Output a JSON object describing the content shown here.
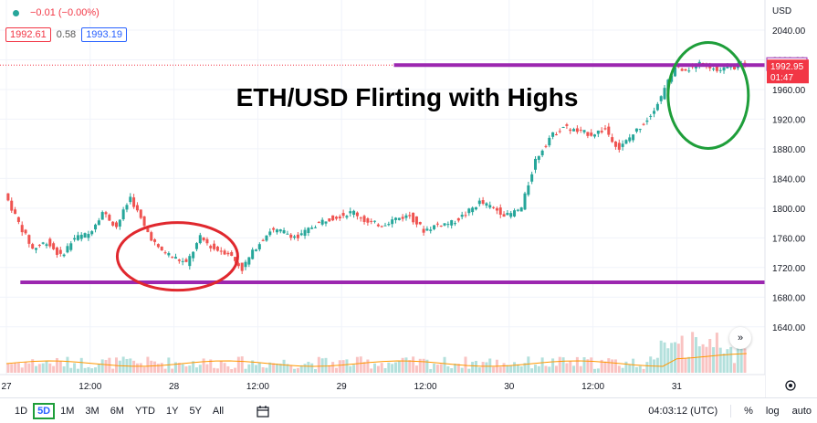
{
  "legend": {
    "change": "−0.01 (−0.00%)",
    "bid": "1992.61",
    "spread": "0.58",
    "ask": "1993.19"
  },
  "annotation_title": "ETH/USD Flirting with Highs",
  "price_scale": {
    "currency": "USD",
    "resistance_label": "1992.96",
    "last_price_label": "1992.95",
    "countdown": "01:47"
  },
  "colors": {
    "up": "#26a69a",
    "down": "#ef5350",
    "support_resistance": "#9c27b0",
    "circle_red": "#e0282e",
    "circle_green": "#1e9e3a",
    "last_price_tag": "#f23645"
  },
  "chart_data": {
    "type": "candlestick",
    "title": "ETH/USD Flirting with Highs",
    "y_ticks": [
      1640,
      1680,
      1720,
      1760,
      1800,
      1840,
      1880,
      1920,
      1960,
      2000,
      2040
    ],
    "x_ticks": [
      "27",
      "12:00",
      "28",
      "12:00",
      "29",
      "12:00",
      "30",
      "12:00",
      "31"
    ],
    "ylim": [
      1620,
      2060
    ],
    "x_range_hours": [
      0,
      106
    ],
    "resistance": 1992.96,
    "support": 1700,
    "last_price": 1992.95,
    "price_path": [
      [
        0,
        1820
      ],
      [
        2,
        1780
      ],
      [
        4,
        1745
      ],
      [
        6,
        1755
      ],
      [
        8,
        1735
      ],
      [
        10,
        1760
      ],
      [
        12,
        1765
      ],
      [
        14,
        1795
      ],
      [
        16,
        1775
      ],
      [
        18,
        1815
      ],
      [
        20,
        1775
      ],
      [
        22,
        1745
      ],
      [
        24,
        1735
      ],
      [
        26,
        1725
      ],
      [
        28,
        1760
      ],
      [
        30,
        1745
      ],
      [
        32,
        1740
      ],
      [
        34,
        1718
      ],
      [
        36,
        1748
      ],
      [
        38,
        1770
      ],
      [
        40,
        1768
      ],
      [
        42,
        1760
      ],
      [
        44,
        1775
      ],
      [
        46,
        1785
      ],
      [
        48,
        1790
      ],
      [
        50,
        1795
      ],
      [
        52,
        1780
      ],
      [
        54,
        1778
      ],
      [
        56,
        1786
      ],
      [
        58,
        1790
      ],
      [
        60,
        1770
      ],
      [
        62,
        1778
      ],
      [
        64,
        1780
      ],
      [
        66,
        1792
      ],
      [
        68,
        1808
      ],
      [
        70,
        1800
      ],
      [
        72,
        1790
      ],
      [
        74,
        1800
      ],
      [
        76,
        1865
      ],
      [
        78,
        1895
      ],
      [
        80,
        1910
      ],
      [
        82,
        1903
      ],
      [
        84,
        1900
      ],
      [
        86,
        1906
      ],
      [
        88,
        1880
      ],
      [
        90,
        1900
      ],
      [
        92,
        1920
      ],
      [
        94,
        1950
      ],
      [
        96,
        1990
      ],
      [
        98,
        1988
      ],
      [
        100,
        1998
      ],
      [
        102,
        1985
      ],
      [
        104,
        1990
      ],
      [
        106,
        1993
      ]
    ]
  },
  "periods": [
    "1D",
    "5D",
    "1M",
    "3M",
    "6M",
    "YTD",
    "1Y",
    "5Y",
    "All"
  ],
  "active_period": "5D",
  "time_display": "04:03:12 (UTC)",
  "right_options": [
    "%",
    "log",
    "auto"
  ]
}
